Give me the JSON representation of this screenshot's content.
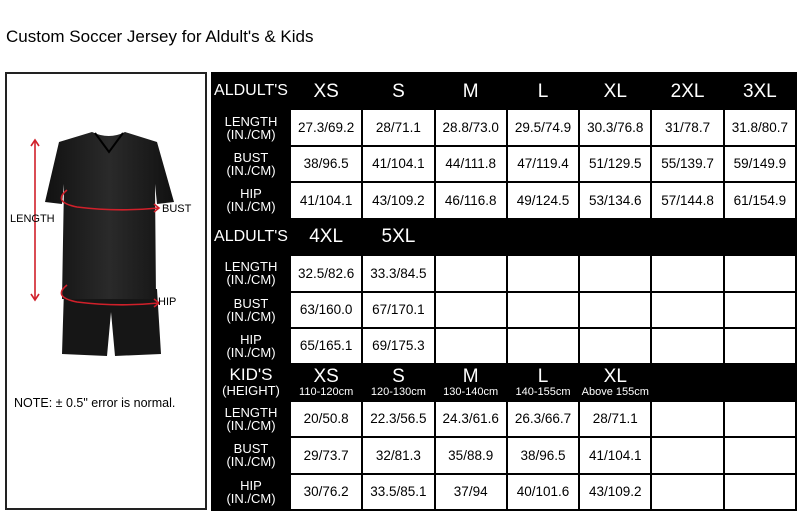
{
  "title": "Custom Soccer Jersey for Aldult's & Kids",
  "diagram": {
    "labels": {
      "length": "LENGTH",
      "bust": "BUST",
      "hip": "HIP"
    },
    "note": "NOTE: ± 0.5\" error is normal.",
    "arrow_color": "#d0202a"
  },
  "table": {
    "sections": [
      {
        "header": {
          "label": "ALDULT'S",
          "sizes": [
            {
              "size": "XS"
            },
            {
              "size": "S"
            },
            {
              "size": "M"
            },
            {
              "size": "L"
            },
            {
              "size": "XL"
            },
            {
              "size": "2XL"
            },
            {
              "size": "3XL"
            }
          ]
        },
        "rows": [
          {
            "label": [
              "LENGTH",
              "(IN./CM)"
            ],
            "values": [
              "27.3/69.2",
              "28/71.1",
              "28.8/73.0",
              "29.5/74.9",
              "30.3/76.8",
              "31/78.7",
              "31.8/80.7"
            ]
          },
          {
            "label": [
              "BUST",
              "(IN./CM)"
            ],
            "values": [
              "38/96.5",
              "41/104.1",
              "44/111.8",
              "47/119.4",
              "51/129.5",
              "55/139.7",
              "59/149.9"
            ]
          },
          {
            "label": [
              "HIP",
              "(IN./CM)"
            ],
            "values": [
              "41/104.1",
              "43/109.2",
              "46/116.8",
              "49/124.5",
              "53/134.6",
              "57/144.8",
              "61/154.9"
            ]
          }
        ]
      },
      {
        "header": {
          "label": "ALDULT'S",
          "sizes": [
            {
              "size": "4XL"
            },
            {
              "size": "5XL"
            },
            {
              "size": ""
            },
            {
              "size": ""
            },
            {
              "size": ""
            },
            {
              "size": ""
            },
            {
              "size": ""
            }
          ]
        },
        "rows": [
          {
            "label": [
              "LENGTH",
              "(IN./CM)"
            ],
            "values": [
              "32.5/82.6",
              "33.3/84.5",
              "",
              "",
              "",
              "",
              ""
            ]
          },
          {
            "label": [
              "BUST",
              "(IN./CM)"
            ],
            "values": [
              "63/160.0",
              "67/170.1",
              "",
              "",
              "",
              "",
              ""
            ]
          },
          {
            "label": [
              "HIP",
              "(IN./CM)"
            ],
            "values": [
              "65/165.1",
              "69/175.3",
              "",
              "",
              "",
              "",
              ""
            ]
          }
        ]
      },
      {
        "header": {
          "label": [
            "KID'S",
            "(HEIGHT)"
          ],
          "sizes": [
            {
              "size": "XS",
              "height": "110-120cm"
            },
            {
              "size": "S",
              "height": "120-130cm"
            },
            {
              "size": "M",
              "height": "130-140cm"
            },
            {
              "size": "L",
              "height": "140-155cm"
            },
            {
              "size": "XL",
              "height": "Above 155cm"
            },
            {
              "size": ""
            },
            {
              "size": ""
            }
          ]
        },
        "rows": [
          {
            "label": [
              "LENGTH",
              "(IN./CM)"
            ],
            "values": [
              "20/50.8",
              "22.3/56.5",
              "24.3/61.6",
              "26.3/66.7",
              "28/71.1",
              "",
              ""
            ]
          },
          {
            "label": [
              "BUST",
              "(IN./CM)"
            ],
            "values": [
              "29/73.7",
              "32/81.3",
              "35/88.9",
              "38/96.5",
              "41/104.1",
              "",
              ""
            ]
          },
          {
            "label": [
              "HIP",
              "(IN./CM)"
            ],
            "values": [
              "30/76.2",
              "33.5/85.1",
              "37/94",
              "40/101.6",
              "43/109.2",
              "",
              ""
            ]
          }
        ]
      }
    ]
  }
}
